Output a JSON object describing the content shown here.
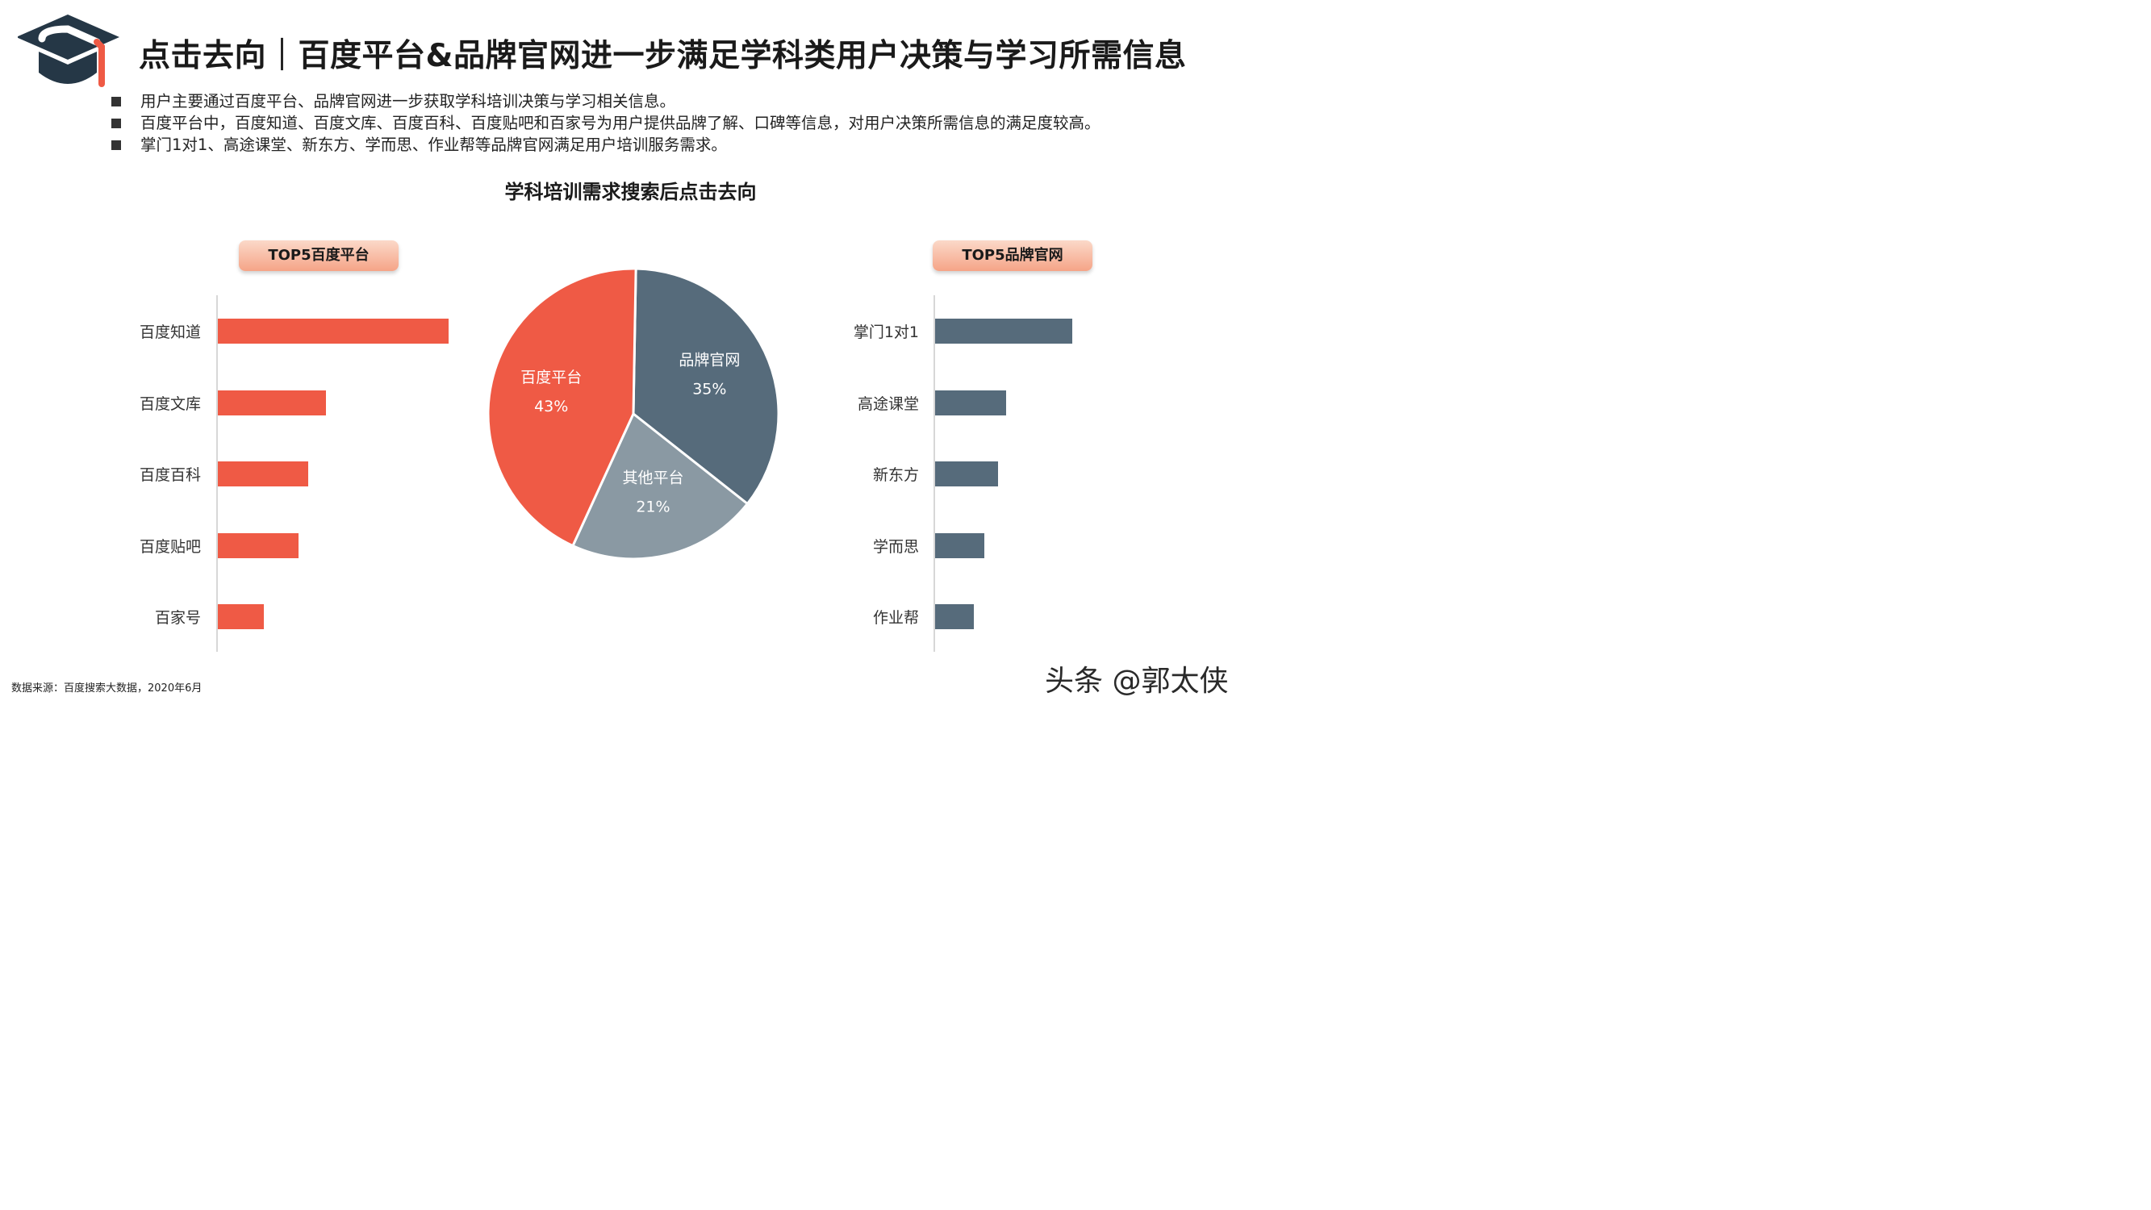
{
  "title": "点击去向｜百度平台&品牌官网进一步满足学科类用户决策与学习所需信息",
  "bullets": [
    "用户主要通过百度平台、品牌官网进一步获取学科培训决策与学习相关信息。",
    "百度平台中，百度知道、百度文库、百度百科、百度贴吧和百家号为用户提供品牌了解、口碑等信息，对用户决策所需信息的满足度较高。",
    "掌门1对1、高途课堂、新东方、学而思、作业帮等品牌官网满足用户培训服务需求。"
  ],
  "source": "数据来源：百度搜索大数据，2020年6月",
  "watermark": "头条 @郭太侠",
  "colors": {
    "orange": "#ef5a45",
    "slate": "#566b7b",
    "gray": "#8a99a3"
  },
  "chart_data": [
    {
      "type": "pie",
      "title": "学科培训需求搜索后点击去向",
      "slices": [
        {
          "label": "品牌官网",
          "value": 35,
          "display": "35%",
          "color": "#566b7b"
        },
        {
          "label": "其他平台",
          "value": 21,
          "display": "21%",
          "color": "#8a99a3"
        },
        {
          "label": "百度平台",
          "value": 43,
          "display": "43%",
          "color": "#ef5a45"
        }
      ]
    },
    {
      "type": "bar",
      "orientation": "horizontal",
      "title": "TOP5百度平台",
      "categories": [
        "百度知道",
        "百度文库",
        "百度百科",
        "百度贴吧",
        "百家号"
      ],
      "values": [
        100,
        47,
        39,
        35,
        20
      ],
      "color": "#ef5a45"
    },
    {
      "type": "bar",
      "orientation": "horizontal",
      "title": "TOP5品牌官网",
      "categories": [
        "掌门1对1",
        "高途课堂",
        "新东方",
        "学而思",
        "作业帮"
      ],
      "values": [
        100,
        52,
        46,
        36,
        28
      ],
      "color": "#566b7b"
    }
  ]
}
